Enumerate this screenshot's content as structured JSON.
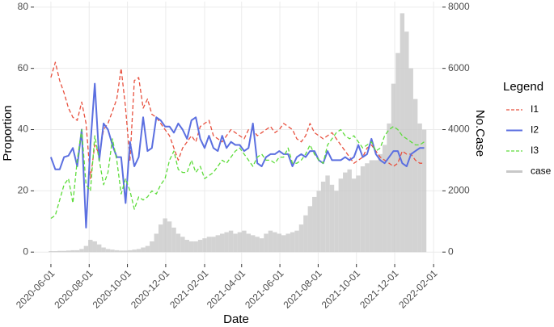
{
  "chart_data": {
    "type": "line",
    "xlabel": "Date",
    "ylabel": "Proportion",
    "y2label": "No.Case",
    "legend_title": "Legend",
    "legend": "right",
    "grid": true,
    "x": [
      "2020-06-01",
      "2020-06-08",
      "2020-06-15",
      "2020-06-22",
      "2020-06-29",
      "2020-07-06",
      "2020-07-13",
      "2020-07-20",
      "2020-07-27",
      "2020-08-03",
      "2020-08-10",
      "2020-08-17",
      "2020-08-24",
      "2020-08-31",
      "2020-09-07",
      "2020-09-14",
      "2020-09-21",
      "2020-09-28",
      "2020-10-05",
      "2020-10-12",
      "2020-10-19",
      "2020-10-26",
      "2020-11-02",
      "2020-11-09",
      "2020-11-16",
      "2020-11-23",
      "2020-11-30",
      "2020-12-07",
      "2020-12-14",
      "2020-12-21",
      "2020-12-28",
      "2021-01-04",
      "2021-01-11",
      "2021-01-18",
      "2021-01-25",
      "2021-02-01",
      "2021-02-08",
      "2021-02-15",
      "2021-02-22",
      "2021-03-01",
      "2021-03-08",
      "2021-03-15",
      "2021-03-22",
      "2021-03-29",
      "2021-04-05",
      "2021-04-12",
      "2021-04-19",
      "2021-04-26",
      "2021-05-03",
      "2021-05-10",
      "2021-05-17",
      "2021-05-24",
      "2021-05-31",
      "2021-06-07",
      "2021-06-14",
      "2021-06-21",
      "2021-06-28",
      "2021-07-05",
      "2021-07-12",
      "2021-07-19",
      "2021-07-26",
      "2021-08-02",
      "2021-08-09",
      "2021-08-16",
      "2021-08-23",
      "2021-08-30",
      "2021-09-06",
      "2021-09-13",
      "2021-09-20",
      "2021-09-27",
      "2021-10-04",
      "2021-10-11",
      "2021-10-18",
      "2021-10-25",
      "2021-11-01",
      "2021-11-08",
      "2021-11-15",
      "2021-11-22",
      "2021-11-29",
      "2021-12-06",
      "2021-12-13",
      "2021-12-20",
      "2021-12-27",
      "2022-01-03",
      "2022-01-10",
      "2022-01-17"
    ],
    "xlim": [
      "2020-05-05",
      "2022-02-15"
    ],
    "xticks": [
      "2020-06-01",
      "2020-08-01",
      "2020-10-01",
      "2020-12-01",
      "2021-02-01",
      "2021-04-01",
      "2021-06-01",
      "2021-08-01",
      "2021-10-01",
      "2021-12-01",
      "2022-02-01"
    ],
    "ylim": [
      -3.9,
      81.8
    ],
    "yticks": [
      0,
      20,
      40,
      60,
      80
    ],
    "y2lim": [
      -390,
      8180
    ],
    "y2ticks": [
      0,
      2000,
      4000,
      6000,
      8000
    ],
    "series": [
      {
        "name": "I1",
        "color": "#e8513f",
        "linestyle": "dashed",
        "kind": "line",
        "values": [
          57,
          62,
          56,
          52,
          47,
          44,
          43,
          49,
          42,
          24,
          35,
          32,
          40,
          42,
          46,
          50,
          60,
          47,
          30,
          56,
          57,
          47,
          50,
          45,
          44,
          42,
          40,
          38,
          34,
          30,
          34,
          36,
          38,
          36,
          41,
          42,
          43,
          38,
          37,
          36,
          38,
          40,
          39,
          38,
          37,
          40,
          40,
          38,
          39,
          40,
          41,
          39,
          40,
          42,
          41,
          40,
          37,
          36,
          38,
          42,
          39,
          38,
          37,
          38,
          39,
          37,
          35,
          33,
          31,
          29,
          30,
          31,
          34,
          35,
          33,
          31,
          30,
          29,
          28,
          29,
          33,
          32,
          32,
          30,
          29,
          29
        ]
      },
      {
        "name": "I2",
        "color": "#5b6fe0",
        "linestyle": "solid",
        "kind": "line",
        "values": [
          31,
          27,
          27,
          31,
          31.5,
          34,
          28,
          40,
          8,
          35,
          55,
          30,
          42,
          40,
          35,
          31,
          31,
          16,
          36,
          28,
          31,
          44,
          33,
          34,
          44,
          43,
          41,
          41,
          39,
          42,
          40,
          37,
          43,
          44,
          37,
          34,
          38,
          34,
          33,
          38,
          34,
          36,
          35,
          35,
          33,
          34,
          42,
          29,
          28,
          31,
          32,
          32,
          33,
          32,
          32,
          28,
          31,
          32,
          31,
          33,
          33,
          30,
          29,
          33,
          30,
          30,
          30,
          31,
          30,
          31,
          35,
          31,
          32,
          37,
          32,
          30,
          29,
          31,
          33,
          33,
          29,
          28,
          32,
          33,
          34,
          34
        ]
      },
      {
        "name": "I3",
        "color": "#5ddc3a",
        "linestyle": "dashed",
        "kind": "line",
        "values": [
          11,
          12,
          17,
          22,
          24,
          16,
          30,
          40,
          22,
          20,
          38,
          30,
          22,
          26,
          37,
          30,
          19,
          24,
          20,
          14,
          18,
          17,
          18,
          20,
          19,
          22,
          24,
          30,
          33,
          27,
          26,
          26,
          30,
          26,
          28,
          24,
          25,
          26,
          28,
          30,
          29,
          31,
          33,
          34,
          32,
          30,
          28,
          31,
          32,
          30,
          30,
          29,
          31,
          31,
          34,
          29,
          29,
          30,
          32,
          35,
          32,
          30,
          29,
          35,
          37,
          39,
          40,
          38,
          37,
          38,
          36,
          34,
          35,
          36,
          33,
          34,
          38,
          40,
          41,
          40,
          38,
          37,
          36,
          35,
          35,
          36
        ]
      },
      {
        "name": "case",
        "color": "#c8c8c8",
        "kind": "bar",
        "axis": "y2",
        "values": [
          30,
          30,
          40,
          40,
          50,
          60,
          60,
          100,
          200,
          400,
          350,
          250,
          150,
          100,
          80,
          60,
          50,
          50,
          60,
          80,
          100,
          150,
          200,
          350,
          600,
          900,
          1100,
          1000,
          800,
          600,
          500,
          400,
          350,
          350,
          400,
          450,
          500,
          500,
          550,
          600,
          650,
          700,
          600,
          650,
          700,
          600,
          550,
          500,
          450,
          600,
          700,
          650,
          600,
          550,
          600,
          650,
          700,
          900,
          1200,
          1500,
          1800,
          2000,
          2300,
          2500,
          2200,
          2000,
          2400,
          2600,
          2700,
          2400,
          2500,
          2800,
          2900,
          3000,
          3000,
          3200,
          3500,
          4200,
          5500,
          6500,
          7800,
          7200,
          6000,
          5000,
          4200,
          4000
        ]
      }
    ]
  }
}
